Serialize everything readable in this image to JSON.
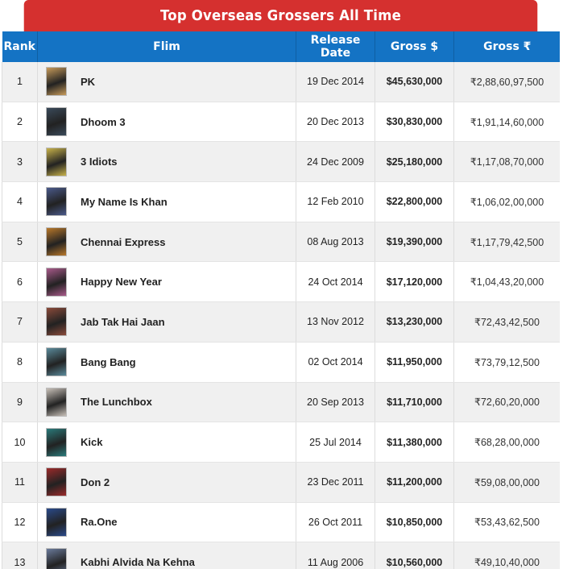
{
  "table": {
    "title": "Top Overseas Grossers All Time",
    "headers": {
      "rank": "Rank",
      "film": "Flim",
      "release": "Release Date",
      "gross_usd": "Gross $",
      "gross_inr": "Gross ₹"
    },
    "rows": [
      {
        "rank": "1",
        "film": "PK",
        "release": "19 Dec 2014",
        "gross_usd": "$45,630,000",
        "gross_inr": "₹2,88,60,97,500",
        "poster_color": "#c79a5a"
      },
      {
        "rank": "2",
        "film": "Dhoom 3",
        "release": "20 Dec 2013",
        "gross_usd": "$30,830,000",
        "gross_inr": "₹1,91,14,60,000",
        "poster_color": "#3a4a5a"
      },
      {
        "rank": "3",
        "film": "3 Idiots",
        "release": "24 Dec 2009",
        "gross_usd": "$25,180,000",
        "gross_inr": "₹1,17,08,70,000",
        "poster_color": "#c8b24a"
      },
      {
        "rank": "4",
        "film": "My Name Is Khan",
        "release": "12 Feb 2010",
        "gross_usd": "$22,800,000",
        "gross_inr": "₹1,06,02,00,000",
        "poster_color": "#4a5a8a"
      },
      {
        "rank": "5",
        "film": "Chennai Express",
        "release": "08 Aug 2013",
        "gross_usd": "$19,390,000",
        "gross_inr": "₹1,17,79,42,500",
        "poster_color": "#b8782a"
      },
      {
        "rank": "6",
        "film": "Happy New Year",
        "release": "24 Oct 2014",
        "gross_usd": "$17,120,000",
        "gross_inr": "₹1,04,43,20,000",
        "poster_color": "#a85a8a"
      },
      {
        "rank": "7",
        "film": "Jab Tak Hai Jaan",
        "release": "13 Nov 2012",
        "gross_usd": "$13,230,000",
        "gross_inr": "₹72,43,42,500",
        "poster_color": "#8a4a3a"
      },
      {
        "rank": "8",
        "film": "Bang Bang",
        "release": "02 Oct 2014",
        "gross_usd": "$11,950,000",
        "gross_inr": "₹73,79,12,500",
        "poster_color": "#5a8a9a"
      },
      {
        "rank": "9",
        "film": "The Lunchbox",
        "release": "20 Sep 2013",
        "gross_usd": "$11,710,000",
        "gross_inr": "₹72,60,20,000",
        "poster_color": "#c8c0b8"
      },
      {
        "rank": "10",
        "film": "Kick",
        "release": "25 Jul 2014",
        "gross_usd": "$11,380,000",
        "gross_inr": "₹68,28,00,000",
        "poster_color": "#2a7a7a"
      },
      {
        "rank": "11",
        "film": "Don 2",
        "release": "23 Dec 2011",
        "gross_usd": "$11,200,000",
        "gross_inr": "₹59,08,00,000",
        "poster_color": "#9a2a2a"
      },
      {
        "rank": "12",
        "film": "Ra.One",
        "release": "26 Oct 2011",
        "gross_usd": "$10,850,000",
        "gross_inr": "₹53,43,62,500",
        "poster_color": "#2a4a8a"
      },
      {
        "rank": "13",
        "film": "Kabhi Alvida Na Kehna",
        "release": "11 Aug 2006",
        "gross_usd": "$10,560,000",
        "gross_inr": "₹49,10,40,000",
        "poster_color": "#6a7a9a"
      }
    ]
  }
}
